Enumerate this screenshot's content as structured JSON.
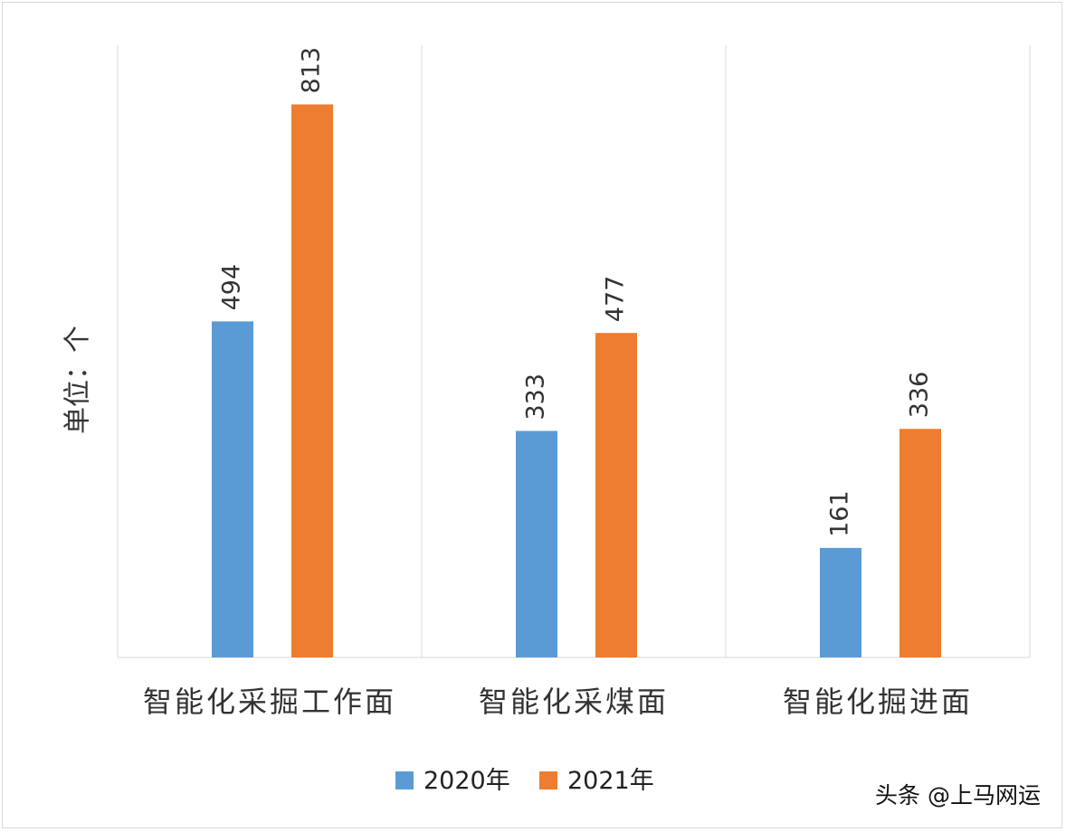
{
  "chart_data": {
    "type": "bar",
    "ylabel": "单位：个",
    "categories": [
      "智能化采掘工作面",
      "智能化采煤面",
      "智能化掘进面"
    ],
    "series": [
      {
        "name": "2020年",
        "color": "#5b9bd5",
        "values": [
          494,
          333,
          161
        ]
      },
      {
        "name": "2021年",
        "color": "#ed7d31",
        "values": [
          813,
          477,
          336
        ]
      }
    ],
    "ylim": [
      0,
      900
    ],
    "grid": false,
    "legend_position": "bottom"
  },
  "watermark": "头条 @上马网运"
}
